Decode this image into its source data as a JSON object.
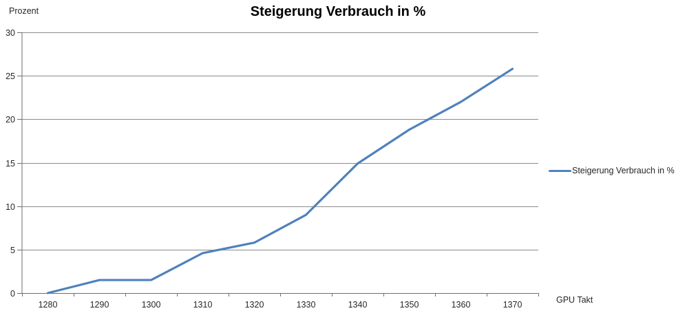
{
  "title": "Steigerung Verbrauch in %",
  "y_axis_title": "Prozent",
  "x_axis_title": "GPU Takt",
  "legend": {
    "label": "Steigerung Verbrauch in %",
    "position": "right"
  },
  "colors": {
    "series": "#4F81BD",
    "gridline": "#8a8a8a",
    "axis": "#6e6e6e",
    "text": "#262626",
    "title": "#000000",
    "background": "#ffffff"
  },
  "chart_data": {
    "type": "line",
    "title": "Steigerung Verbrauch in %",
    "xlabel": "GPU Takt",
    "ylabel": "Prozent",
    "categories": [
      1280,
      1290,
      1300,
      1310,
      1320,
      1330,
      1340,
      1350,
      1360,
      1370
    ],
    "series": [
      {
        "name": "Steigerung Verbrauch in %",
        "values": [
          0,
          1.5,
          1.5,
          4.6,
          5.8,
          9,
          14.9,
          18.8,
          22,
          25.8
        ]
      }
    ],
    "ylim": [
      0,
      30
    ],
    "y_ticks": [
      0,
      5,
      10,
      15,
      20,
      25,
      30
    ],
    "grid": "horizontal-major",
    "legend_position": "right"
  }
}
